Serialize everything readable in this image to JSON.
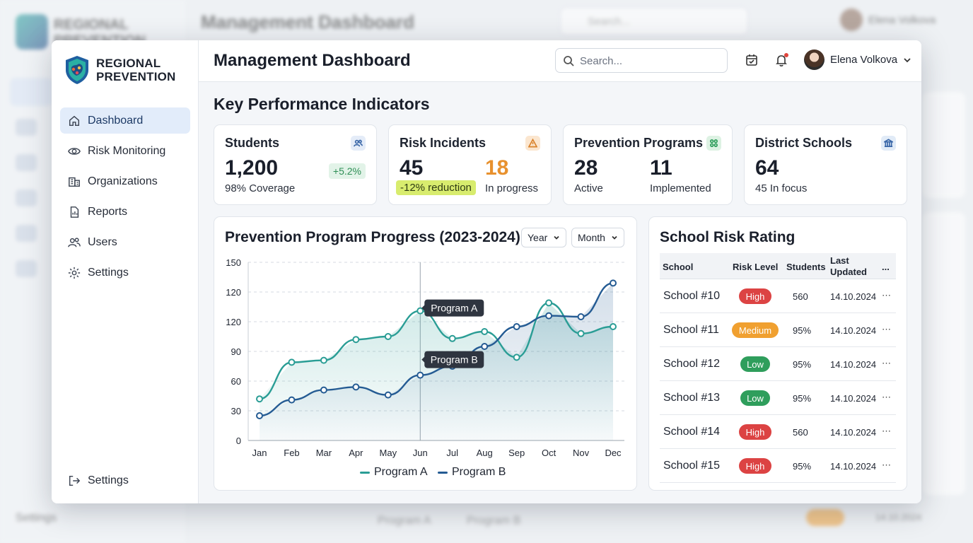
{
  "background": {
    "brand_line1": "REGIONAL",
    "brand_line2": "PREVENTION",
    "title": "Management Dashboard",
    "search_placeholder": "Search...",
    "user_name": "Elena Volkova",
    "bottom_settings": "Settings",
    "legend_a": "Program A",
    "legend_b": "Program B",
    "row_date": "14.10.2024"
  },
  "brand": {
    "line1": "REGIONAL",
    "line2": "PREVENTION"
  },
  "sidebar": {
    "items": [
      {
        "label": "Dashboard",
        "icon": "home-icon",
        "active": true
      },
      {
        "label": "Risk Monitoring",
        "icon": "eye-icon",
        "active": false
      },
      {
        "label": "Organizations",
        "icon": "building-icon",
        "active": false
      },
      {
        "label": "Reports",
        "icon": "report-icon",
        "active": false
      },
      {
        "label": "Users",
        "icon": "users-icon",
        "active": false
      },
      {
        "label": "Settings",
        "icon": "gear-icon",
        "active": false
      }
    ],
    "bottom": {
      "label": "Settings",
      "icon": "logout-icon"
    }
  },
  "header": {
    "title": "Management Dashboard",
    "search_placeholder": "Search...",
    "user_name": "Elena Volkova"
  },
  "kpi": {
    "section_title": "Key Performance Indicators",
    "cards": [
      {
        "title": "Students",
        "value": "1,200",
        "sub": "98% Coverage",
        "chip": "+5.2%",
        "icon": "users-icon"
      },
      {
        "title": "Risk Incidents",
        "value": "45",
        "chip": "-12% reduction",
        "value2": "18",
        "sub2": "In progress",
        "icon": "warning-icon"
      },
      {
        "title": "Prevention Programs",
        "value": "28",
        "sub": "Active",
        "value2": "11",
        "sub2": "Implemented",
        "icon": "grid-icon"
      },
      {
        "title": "District Schools",
        "value": "64",
        "sub": "45 In focus",
        "icon": "school-icon"
      }
    ]
  },
  "colors": {
    "program_a": "#2a9d95",
    "program_b": "#245b93",
    "high": "#dc4343",
    "medium": "#f0a030",
    "low": "#2f9e5c",
    "chip_orange": "#e8912e"
  },
  "chart": {
    "filter_year": "Year",
    "filter_month": "Month",
    "tooltip_a": "Program A",
    "tooltip_b": "Program B"
  },
  "chart_data": {
    "type": "line",
    "title": "Prevention Program Progress (2023-2024)",
    "categories": [
      "Jan",
      "Feb",
      "Mar",
      "Apr",
      "May",
      "Jun",
      "Jul",
      "Aug",
      "Sep",
      "Oct",
      "Nov",
      "Dec"
    ],
    "y_tick_labels": [
      "0",
      "30",
      "60",
      "90",
      "120",
      "120",
      "150"
    ],
    "ylim": [
      0,
      180
    ],
    "series": [
      {
        "name": "Program A",
        "values": [
          42,
          79,
          81,
          102,
          105,
          131,
          103,
          110,
          84,
          139,
          108,
          115
        ]
      },
      {
        "name": "Program B",
        "values": [
          25,
          41,
          51,
          54,
          46,
          66,
          75,
          95,
          115,
          126,
          125,
          159
        ]
      }
    ],
    "grid": true,
    "legend": "bottom",
    "hover_index": 5
  },
  "table": {
    "title": "School Risk Rating",
    "headers": [
      "School",
      "Risk Level",
      "Students",
      "Last",
      "Updated",
      "..."
    ],
    "rows": [
      {
        "school": "School #10",
        "risk": "High",
        "level": "high",
        "students": "560",
        "updated": "14.10.2024",
        "more": "⋯"
      },
      {
        "school": "School #11",
        "risk": "Medium",
        "level": "medium",
        "students": "95%",
        "updated": "14.10.2024",
        "more": "⋯"
      },
      {
        "school": "School #12",
        "risk": "Low",
        "level": "low",
        "students": "95%",
        "updated": "14.10.2024",
        "more": "⋯"
      },
      {
        "school": "School #13",
        "risk": "Low",
        "level": "low",
        "students": "95%",
        "updated": "14.10.2024",
        "more": "⋯"
      },
      {
        "school": "School #14",
        "risk": "High",
        "level": "high",
        "students": "560",
        "updated": "14.10.2024",
        "more": "⋯"
      },
      {
        "school": "School #15",
        "risk": "High",
        "level": "high",
        "students": "95%",
        "updated": "14.10.2024",
        "more": "⋯"
      }
    ]
  }
}
